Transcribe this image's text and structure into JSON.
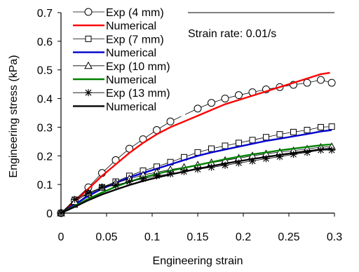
{
  "chart_data": {
    "type": "line",
    "title": "",
    "xlabel": "Engineering strain",
    "ylabel": "Engineering stress (kPa)",
    "annotation": "Strain rate: 0.01/s",
    "xlim": [
      0,
      0.3
    ],
    "ylim": [
      0,
      0.7
    ],
    "x_ticks": [
      "0",
      "0.05",
      "0.1",
      "0.15",
      "0.2",
      "0.25",
      "0.3"
    ],
    "y_ticks": [
      "0",
      "0.1",
      "0.2",
      "0.3",
      "0.4",
      "0.5",
      "0.6",
      "0.7"
    ],
    "grid": false,
    "legend_position": "top-left",
    "series": [
      {
        "name": "Exp (4 mm)",
        "kind": "experimental",
        "marker": "circle",
        "color": "#000000",
        "x": [
          0,
          0.015,
          0.03,
          0.045,
          0.06,
          0.075,
          0.09,
          0.105,
          0.12,
          0.15,
          0.165,
          0.18,
          0.195,
          0.21,
          0.225,
          0.24,
          0.255,
          0.27,
          0.285,
          0.297
        ],
        "y": [
          0,
          0.045,
          0.09,
          0.14,
          0.185,
          0.225,
          0.258,
          0.29,
          0.32,
          0.365,
          0.385,
          0.4,
          0.412,
          0.422,
          0.432,
          0.44,
          0.448,
          0.455,
          0.465,
          0.455
        ]
      },
      {
        "name": "Numerical",
        "kind": "numerical",
        "color": "#ff0000",
        "x": [
          0,
          0.015,
          0.03,
          0.045,
          0.06,
          0.075,
          0.09,
          0.105,
          0.12,
          0.135,
          0.15,
          0.165,
          0.18,
          0.195,
          0.21,
          0.225,
          0.24,
          0.255,
          0.27,
          0.285,
          0.295
        ],
        "y": [
          0,
          0.04,
          0.085,
          0.13,
          0.17,
          0.21,
          0.245,
          0.275,
          0.3,
          0.32,
          0.34,
          0.36,
          0.38,
          0.395,
          0.41,
          0.425,
          0.44,
          0.455,
          0.47,
          0.485,
          0.49
        ]
      },
      {
        "name": "Exp (7 mm)",
        "kind": "experimental",
        "marker": "square",
        "color": "#000000",
        "x": [
          0,
          0.015,
          0.03,
          0.045,
          0.06,
          0.075,
          0.09,
          0.105,
          0.12,
          0.135,
          0.15,
          0.165,
          0.18,
          0.195,
          0.21,
          0.225,
          0.24,
          0.255,
          0.27,
          0.285,
          0.297
        ],
        "y": [
          0,
          0.03,
          0.065,
          0.09,
          0.11,
          0.13,
          0.148,
          0.162,
          0.178,
          0.195,
          0.212,
          0.225,
          0.235,
          0.245,
          0.255,
          0.265,
          0.275,
          0.283,
          0.29,
          0.3,
          0.302
        ]
      },
      {
        "name": "Numerical",
        "kind": "numerical",
        "color": "#0000cc",
        "x": [
          0,
          0.015,
          0.03,
          0.045,
          0.06,
          0.075,
          0.09,
          0.105,
          0.12,
          0.135,
          0.15,
          0.165,
          0.18,
          0.195,
          0.21,
          0.225,
          0.24,
          0.255,
          0.27,
          0.285,
          0.297
        ],
        "y": [
          0,
          0.03,
          0.06,
          0.085,
          0.105,
          0.125,
          0.14,
          0.155,
          0.17,
          0.185,
          0.2,
          0.212,
          0.222,
          0.232,
          0.242,
          0.252,
          0.26,
          0.268,
          0.276,
          0.285,
          0.29
        ]
      },
      {
        "name": "Exp (10 mm)",
        "kind": "experimental",
        "marker": "triangle",
        "color": "#000000",
        "x": [
          0,
          0.015,
          0.03,
          0.045,
          0.06,
          0.075,
          0.09,
          0.105,
          0.12,
          0.135,
          0.15,
          0.165,
          0.18,
          0.195,
          0.21,
          0.225,
          0.24,
          0.255,
          0.27,
          0.285,
          0.297
        ],
        "y": [
          0,
          0.04,
          0.07,
          0.09,
          0.105,
          0.12,
          0.133,
          0.143,
          0.152,
          0.16,
          0.168,
          0.176,
          0.184,
          0.192,
          0.2,
          0.207,
          0.213,
          0.218,
          0.224,
          0.23,
          0.232
        ]
      },
      {
        "name": "Numerical",
        "kind": "numerical",
        "color": "#008000",
        "x": [
          0,
          0.015,
          0.03,
          0.045,
          0.06,
          0.075,
          0.09,
          0.105,
          0.12,
          0.135,
          0.15,
          0.165,
          0.18,
          0.195,
          0.21,
          0.225,
          0.24,
          0.255,
          0.27,
          0.285,
          0.297
        ],
        "y": [
          0,
          0.025,
          0.05,
          0.072,
          0.092,
          0.11,
          0.124,
          0.137,
          0.148,
          0.158,
          0.168,
          0.178,
          0.188,
          0.197,
          0.205,
          0.212,
          0.219,
          0.225,
          0.231,
          0.237,
          0.24
        ]
      },
      {
        "name": "Exp (13 mm)",
        "kind": "experimental",
        "marker": "asterisk",
        "color": "#000000",
        "x": [
          0,
          0.015,
          0.03,
          0.045,
          0.06,
          0.075,
          0.09,
          0.105,
          0.12,
          0.135,
          0.15,
          0.165,
          0.18,
          0.195,
          0.21,
          0.225,
          0.24,
          0.255,
          0.27,
          0.285,
          0.297
        ],
        "y": [
          0,
          0.048,
          0.07,
          0.09,
          0.098,
          0.11,
          0.12,
          0.13,
          0.137,
          0.145,
          0.153,
          0.16,
          0.167,
          0.175,
          0.182,
          0.19,
          0.197,
          0.205,
          0.212,
          0.22,
          0.22
        ]
      },
      {
        "name": "Numerical",
        "kind": "numerical",
        "color": "#000000",
        "x": [
          0,
          0.015,
          0.03,
          0.045,
          0.06,
          0.075,
          0.09,
          0.105,
          0.12,
          0.135,
          0.15,
          0.165,
          0.18,
          0.195,
          0.21,
          0.225,
          0.24,
          0.255,
          0.27,
          0.285,
          0.297
        ],
        "y": [
          0,
          0.022,
          0.045,
          0.065,
          0.082,
          0.098,
          0.112,
          0.124,
          0.135,
          0.145,
          0.155,
          0.164,
          0.173,
          0.181,
          0.189,
          0.196,
          0.203,
          0.21,
          0.216,
          0.222,
          0.225
        ]
      }
    ]
  }
}
